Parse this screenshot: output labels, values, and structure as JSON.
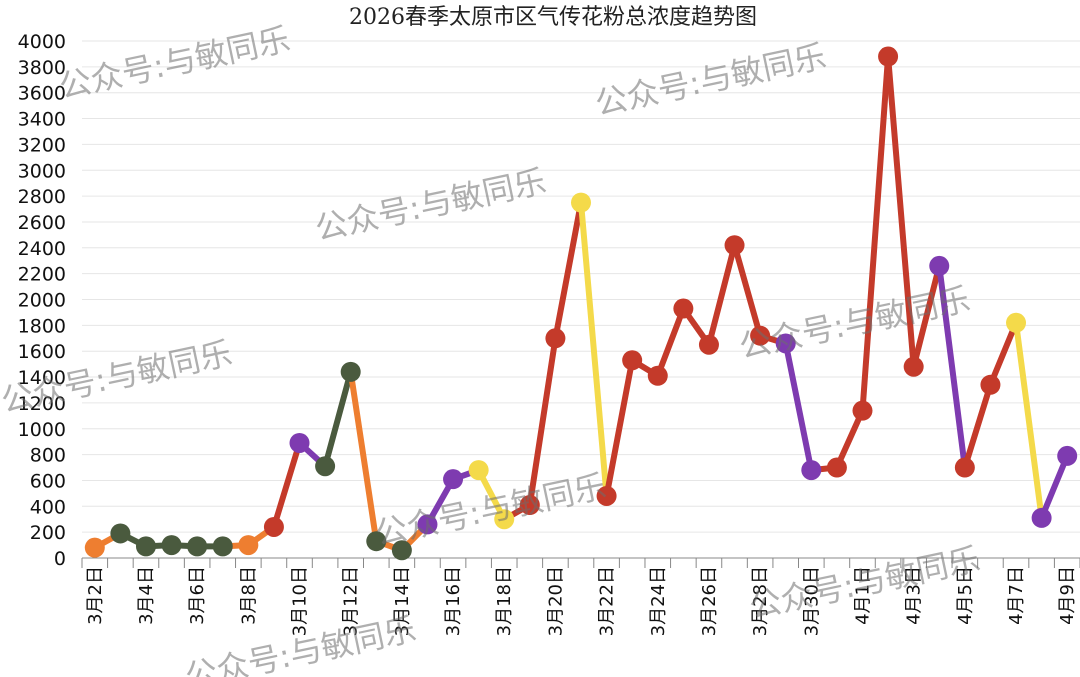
{
  "chart_data": {
    "type": "line",
    "title": "2026春季太原市区气传花粉总浓度趋势图",
    "xlabel": "",
    "ylabel": "",
    "ylim": [
      0,
      4000
    ],
    "yticks": [
      0,
      200,
      400,
      600,
      800,
      1000,
      1200,
      1400,
      1600,
      1800,
      2000,
      2200,
      2400,
      2600,
      2800,
      3000,
      3200,
      3400,
      3600,
      3800,
      4000
    ],
    "grid": true,
    "legend": "none",
    "x": [
      "3月2日",
      "3月3日",
      "3月4日",
      "3月5日",
      "3月6日",
      "3月7日",
      "3月8日",
      "3月9日",
      "3月10日",
      "3月11日",
      "3月12日",
      "3月13日",
      "3月14日",
      "3月15日",
      "3月16日",
      "3月17日",
      "3月18日",
      "3月19日",
      "3月20日",
      "3月21日",
      "3月22日",
      "3月23日",
      "3月24日",
      "3月25日",
      "3月26日",
      "3月27日",
      "3月28日",
      "3月29日",
      "3月30日",
      "3月31日",
      "4月1日",
      "4月2日",
      "4月3日",
      "4月4日",
      "4月5日",
      "4月6日",
      "4月7日",
      "4月8日",
      "4月9日"
    ],
    "xtick_labels": [
      "3月2日",
      "3月4日",
      "3月6日",
      "3月8日",
      "3月10日",
      "3月12日",
      "3月14日",
      "3月16日",
      "3月18日",
      "3月20日",
      "3月22日",
      "3月24日",
      "3月26日",
      "3月28日",
      "3月30日",
      "4月1日",
      "4月3日",
      "4月5日",
      "4月7日",
      "4月9日"
    ],
    "values": [
      80,
      190,
      90,
      100,
      90,
      90,
      100,
      240,
      890,
      710,
      1440,
      130,
      60,
      260,
      610,
      680,
      300,
      410,
      1700,
      2750,
      480,
      1530,
      1410,
      1930,
      1650,
      2420,
      1720,
      1660,
      680,
      700,
      1140,
      3880,
      1480,
      2260,
      700,
      1340,
      1820,
      310,
      790
    ],
    "colors": [
      "#ee7e30",
      "#4a5a3e",
      "#4a5a3e",
      "#4a5a3e",
      "#4a5a3e",
      "#4a5a3e",
      "#ee7e30",
      "#c43a2a",
      "#7e3bb0",
      "#4a5a3e",
      "#4a5a3e",
      "#4a5a3e",
      "#4a5a3e",
      "#7e3bb0",
      "#7e3bb0",
      "#f4da4a",
      "#f4da4a",
      "#c43a2a",
      "#c43a2a",
      "#f4da4a",
      "#c43a2a",
      "#c43a2a",
      "#c43a2a",
      "#c43a2a",
      "#c43a2a",
      "#c43a2a",
      "#c43a2a",
      "#7e3bb0",
      "#7e3bb0",
      "#c43a2a",
      "#c43a2a",
      "#c43a2a",
      "#c43a2a",
      "#7e3bb0",
      "#c43a2a",
      "#c43a2a",
      "#f4da4a",
      "#7e3bb0",
      "#7e3bb0"
    ],
    "segment_colors": [
      "#ee7e30",
      "#4a5a3e",
      "#4a5a3e",
      "#4a5a3e",
      "#4a5a3e",
      "#ee7e30",
      "#ee7e30",
      "#c43a2a",
      "#7e3bb0",
      "#4a5a3e",
      "#ee7e30",
      "#ee7e30",
      "#ee7e30",
      "#7e3bb0",
      "#7e3bb0",
      "#f4da4a",
      "#c43a2a",
      "#c43a2a",
      "#c43a2a",
      "#f4da4a",
      "#c43a2a",
      "#c43a2a",
      "#c43a2a",
      "#c43a2a",
      "#c43a2a",
      "#c43a2a",
      "#c43a2a",
      "#7e3bb0",
      "#c43a2a",
      "#c43a2a",
      "#c43a2a",
      "#c43a2a",
      "#c43a2a",
      "#7e3bb0",
      "#c43a2a",
      "#c43a2a",
      "#f4da4a",
      "#7e3bb0"
    ]
  },
  "watermark": "公众号:与敏同乐",
  "colors": {
    "grid": "#e6e6e6",
    "axis": "#888888"
  }
}
